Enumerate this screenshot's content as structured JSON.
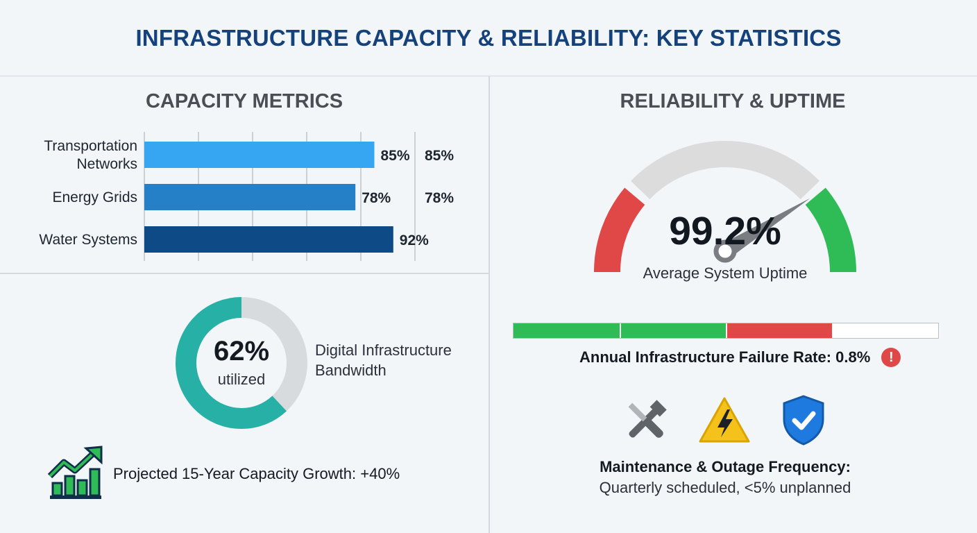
{
  "header": {
    "title": "INFRASTRUCTURE CAPACITY & RELIABILITY: KEY STATISTICS"
  },
  "capacity": {
    "title": "CAPACITY METRICS",
    "chart_data": {
      "type": "bar",
      "orientation": "horizontal",
      "categories": [
        "Transportation\nNetworks",
        "Energy Grids",
        "Water Systems"
      ],
      "values": [
        85,
        78,
        92
      ],
      "value_labels": [
        "85%",
        "78%",
        "92%"
      ],
      "right_labels": [
        "85%",
        "78%",
        ""
      ],
      "colors": [
        "#36a6f2",
        "#2580c8",
        "#0e4a85"
      ],
      "xlim": [
        0,
        100
      ],
      "grid": true
    }
  },
  "digital": {
    "value": "62%",
    "sub": "utilized",
    "label": "Digital Infrastructure Bandwidth",
    "fraction": 0.62,
    "color": "#27b0a5",
    "track_color": "#d8dbde"
  },
  "growth": {
    "text": "Projected 15-Year Capacity Growth: +40%",
    "icon": "growth-chart-icon"
  },
  "reliability": {
    "title": "RELIABILITY & UPTIME",
    "uptime_value": "99.2%",
    "uptime_label": "Average System Uptime",
    "uptime_fraction": 0.992,
    "gauge_colors": {
      "low": "#e04848",
      "mid": "#dcdcdc",
      "high": "#2fbb55",
      "needle": "#7a7d82"
    }
  },
  "failure": {
    "text": "Annual Infrastructure Failure Rate: 0.8%",
    "icon": "alert-icon",
    "segments": [
      {
        "color": "#2fbb55",
        "fraction": 0.25
      },
      {
        "color": "#2fbb55",
        "fraction": 0.25
      },
      {
        "color": "#e04848",
        "fraction": 0.25
      },
      {
        "color": "#ffffff",
        "fraction": 0.25
      }
    ]
  },
  "maintenance": {
    "title": "Maintenance & Outage Frequency:",
    "subtitle": "Quarterly scheduled, <5% unplanned",
    "icons": [
      "tools-icon",
      "warning-icon",
      "shield-check-icon"
    ]
  }
}
